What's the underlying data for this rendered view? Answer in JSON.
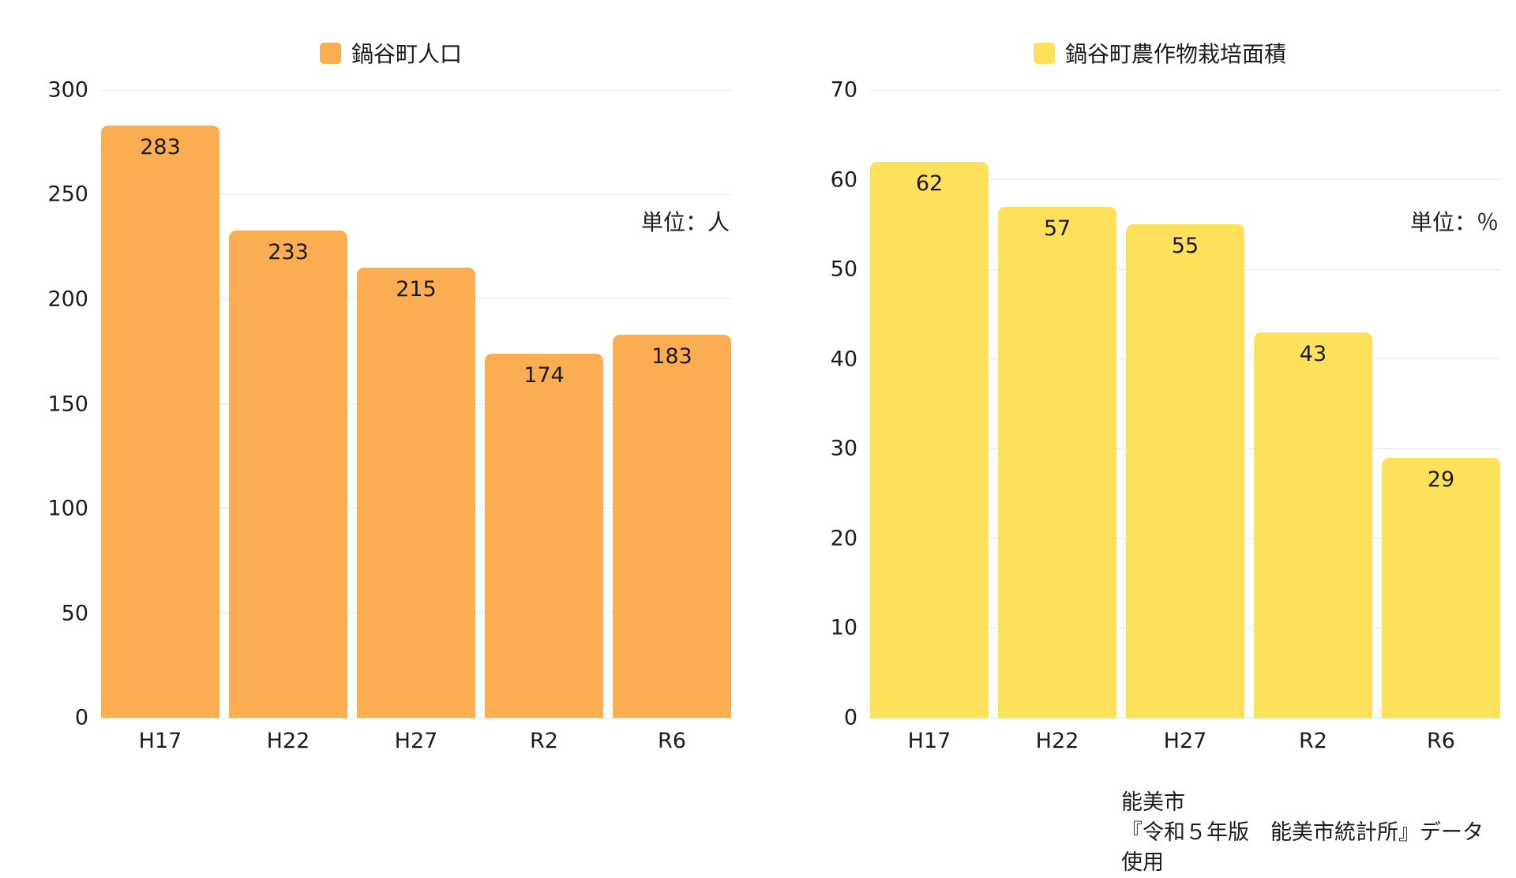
{
  "chart_data": [
    {
      "type": "bar",
      "title": "",
      "legend": "鍋谷町人口",
      "legend_position": "top",
      "unit": "単位：人",
      "categories": [
        "H17",
        "H22",
        "H27",
        "R2",
        "R6"
      ],
      "values": [
        283,
        233,
        215,
        174,
        183
      ],
      "xlabel": "",
      "ylabel": "",
      "ylim": [
        0,
        300
      ],
      "ytick_step": 50,
      "yticks": [
        0,
        50,
        100,
        150,
        200,
        250,
        300
      ],
      "grid": true,
      "bar_color": "#FBAD52",
      "value_label_color": "#1b1b1b"
    },
    {
      "type": "bar",
      "title": "",
      "legend": "鍋谷町農作物栽培面積",
      "legend_position": "top",
      "unit": "単位：％",
      "categories": [
        "H17",
        "H22",
        "H27",
        "R2",
        "R6"
      ],
      "values": [
        62,
        57,
        55,
        43,
        29
      ],
      "xlabel": "",
      "ylabel": "",
      "ylim": [
        0,
        70
      ],
      "ytick_step": 10,
      "yticks": [
        0,
        10,
        20,
        30,
        40,
        50,
        60,
        70
      ],
      "grid": true,
      "bar_color": "#FDE15A",
      "value_label_color": "#1b1b1b"
    }
  ],
  "footer": {
    "line1": "能美市",
    "line2": "『令和５年版　能美市統計所』データ使用"
  }
}
